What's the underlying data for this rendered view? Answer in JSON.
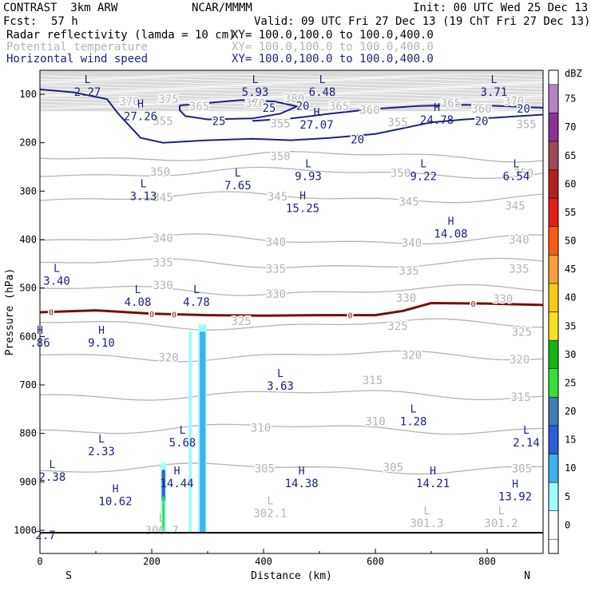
{
  "header": {
    "model": "CONTRAST  3km ARW",
    "center": "NCAR/MMMM",
    "init": "Init: 00 UTC Wed 25 Dec 13",
    "fcst_label": "Fcst:",
    "fcst_value": "57 h",
    "valid": "Valid: 09 UTC Fri 27 Dec 13 (19 ChT Fri 27 Dec 13)"
  },
  "fields": [
    {
      "name": "Radar reflectivity (lamda = 10 cm)",
      "xy": "XY= 100.0,100.0 to 100.0,400.0",
      "color": "#000000"
    },
    {
      "name": "Potential temperature",
      "xy": "XY= 100.0,100.0 to 100.0,400.0",
      "color": "#b4b4b4"
    },
    {
      "name": "Horizontal wind speed",
      "xy": "XY= 100.0,100.0 to 100.0,400.0",
      "color": "#1a237e"
    }
  ],
  "colors": {
    "theta": "#b4b4b4",
    "wind": "#1a237e",
    "zero_line": "#7a0d0d"
  },
  "chart_data": {
    "type": "cross-section",
    "xlabel": "Distance (km)",
    "ylabel": "Pressure (hPa)",
    "xlim": [
      0,
      900
    ],
    "ylim": [
      1010,
      60
    ],
    "x_ticks": [
      0,
      200,
      400,
      600,
      800
    ],
    "y_ticks": [
      100,
      200,
      300,
      400,
      500,
      600,
      700,
      800,
      900,
      1000
    ],
    "x_ends": [
      "S",
      "N"
    ],
    "colorbar": {
      "label": "dBZ",
      "levels": [
        "0",
        "5",
        "10",
        "15",
        "20",
        "25",
        "30",
        "35",
        "40",
        "45",
        "50",
        "55",
        "60",
        "65",
        "70",
        "75"
      ],
      "colors": [
        "#ffffff",
        "#9ffcfc",
        "#3fb0f0",
        "#2d5ed8",
        "#3f7fb8",
        "#37e037",
        "#14b414",
        "#fae020",
        "#fac818",
        "#fa9e3a",
        "#fa5a14",
        "#e61e14",
        "#b41e1e",
        "#9e4a5a",
        "#8c3296",
        "#b482c8"
      ]
    },
    "theta_labels": [
      {
        "value": "375",
        "x": 230,
        "p": 110
      },
      {
        "value": "370",
        "x": 160,
        "p": 115
      },
      {
        "value": "365",
        "x": 285,
        "p": 125
      },
      {
        "value": "370",
        "x": 385,
        "p": 118
      },
      {
        "value": "380",
        "x": 455,
        "p": 108
      },
      {
        "value": "365",
        "x": 535,
        "p": 125
      },
      {
        "value": "365",
        "x": 735,
        "p": 118
      },
      {
        "value": "370",
        "x": 848,
        "p": 114
      },
      {
        "value": "360",
        "x": 790,
        "p": 130
      },
      {
        "value": "355",
        "x": 220,
        "p": 155
      },
      {
        "value": "355",
        "x": 430,
        "p": 160
      },
      {
        "value": "355",
        "x": 640,
        "p": 158
      },
      {
        "value": "360",
        "x": 590,
        "p": 132
      },
      {
        "value": "355",
        "x": 870,
        "p": 162
      },
      {
        "value": "350",
        "x": 430,
        "p": 228
      },
      {
        "value": "350",
        "x": 215,
        "p": 260
      },
      {
        "value": "350",
        "x": 645,
        "p": 262
      },
      {
        "value": "350",
        "x": 865,
        "p": 262
      },
      {
        "value": "345",
        "x": 220,
        "p": 313
      },
      {
        "value": "345",
        "x": 425,
        "p": 311
      },
      {
        "value": "345",
        "x": 660,
        "p": 322
      },
      {
        "value": "345",
        "x": 850,
        "p": 330
      },
      {
        "value": "340",
        "x": 220,
        "p": 397
      },
      {
        "value": "340",
        "x": 422,
        "p": 405
      },
      {
        "value": "340",
        "x": 665,
        "p": 407
      },
      {
        "value": "340",
        "x": 857,
        "p": 400
      },
      {
        "value": "335",
        "x": 220,
        "p": 447
      },
      {
        "value": "335",
        "x": 422,
        "p": 460
      },
      {
        "value": "335",
        "x": 660,
        "p": 464
      },
      {
        "value": "335",
        "x": 857,
        "p": 460
      },
      {
        "value": "330",
        "x": 220,
        "p": 494
      },
      {
        "value": "330",
        "x": 422,
        "p": 512
      },
      {
        "value": "330",
        "x": 655,
        "p": 520
      },
      {
        "value": "330",
        "x": 828,
        "p": 522
      },
      {
        "value": "325",
        "x": 360,
        "p": 568
      },
      {
        "value": "325",
        "x": 640,
        "p": 578
      },
      {
        "value": "325",
        "x": 862,
        "p": 590
      },
      {
        "value": "320",
        "x": 230,
        "p": 643
      },
      {
        "value": "320",
        "x": 665,
        "p": 638
      },
      {
        "value": "320",
        "x": 858,
        "p": 647
      },
      {
        "value": "315",
        "x": 595,
        "p": 690
      },
      {
        "value": "315",
        "x": 860,
        "p": 725
      },
      {
        "value": "310",
        "x": 395,
        "p": 788
      },
      {
        "value": "310",
        "x": 600,
        "p": 775
      },
      {
        "value": "305",
        "x": 402,
        "p": 872
      },
      {
        "value": "305",
        "x": 632,
        "p": 870
      },
      {
        "value": "305",
        "x": 862,
        "p": 872
      }
    ],
    "wind_labels": [
      {
        "value": "25",
        "x": 410,
        "p": 128
      },
      {
        "value": "20",
        "x": 470,
        "p": 124
      },
      {
        "value": "25",
        "x": 320,
        "p": 155
      },
      {
        "value": "20",
        "x": 568,
        "p": 193
      },
      {
        "value": "20",
        "x": 790,
        "p": 155
      },
      {
        "value": "20",
        "x": 865,
        "p": 130
      }
    ],
    "extrema": [
      {
        "kind": "L",
        "value": "2.27",
        "x": 85,
        "p": 90
      },
      {
        "kind": "L",
        "value": "5.93",
        "x": 385,
        "p": 90
      },
      {
        "kind": "L",
        "value": "6.48",
        "x": 505,
        "p": 90
      },
      {
        "kind": "L",
        "value": "3.71",
        "x": 812,
        "p": 90
      },
      {
        "kind": "H",
        "value": "27.26",
        "x": 180,
        "p": 140
      },
      {
        "kind": "H",
        "value": "27.07",
        "x": 495,
        "p": 158
      },
      {
        "kind": "H",
        "value": "24.78",
        "x": 710,
        "p": 148
      },
      {
        "kind": "L",
        "value": "9.93",
        "x": 480,
        "p": 264
      },
      {
        "kind": "L",
        "value": "9.22",
        "x": 686,
        "p": 264
      },
      {
        "kind": "L",
        "value": "6.54",
        "x": 852,
        "p": 264
      },
      {
        "kind": "L",
        "value": "7.65",
        "x": 354,
        "p": 283
      },
      {
        "kind": "L",
        "value": "3.13",
        "x": 185,
        "p": 305
      },
      {
        "kind": "H",
        "value": "15.25",
        "x": 470,
        "p": 330
      },
      {
        "kind": "H",
        "value": "14.08",
        "x": 735,
        "p": 383
      },
      {
        "kind": "L",
        "value": "3.40",
        "x": 30,
        "p": 480
      },
      {
        "kind": "L",
        "value": "4.08",
        "x": 175,
        "p": 524
      },
      {
        "kind": "L",
        "value": "4.78",
        "x": 280,
        "p": 524
      },
      {
        "kind": "H",
        "value": "9.10",
        "x": 110,
        "p": 608
      },
      {
        "kind": "H",
        "value": ".86",
        "x": 0,
        "p": 608
      },
      {
        "kind": "L",
        "value": "3.63",
        "x": 430,
        "p": 697
      },
      {
        "kind": "L",
        "value": "1.28",
        "x": 668,
        "p": 770
      },
      {
        "kind": "L",
        "value": "5.68",
        "x": 255,
        "p": 814
      },
      {
        "kind": "L",
        "value": "2.14",
        "x": 870,
        "p": 814
      },
      {
        "kind": "L",
        "value": "2.33",
        "x": 110,
        "p": 832
      },
      {
        "kind": "L",
        "value": "2.38",
        "x": 22,
        "p": 885
      },
      {
        "kind": "H",
        "value": "14.44",
        "x": 245,
        "p": 898
      },
      {
        "kind": "H",
        "value": "14.38",
        "x": 468,
        "p": 898
      },
      {
        "kind": "H",
        "value": "14.21",
        "x": 703,
        "p": 898
      },
      {
        "kind": "H",
        "value": "13.92",
        "x": 850,
        "p": 925
      },
      {
        "kind": "H",
        "value": "10.62",
        "x": 135,
        "p": 935
      },
      {
        "kind": "L",
        "value": "302.1",
        "x": 412,
        "p": 960
      },
      {
        "kind": "L",
        "value": "301.3",
        "x": 692,
        "p": 980
      },
      {
        "kind": "L",
        "value": "301.2",
        "x": 825,
        "p": 980
      },
      {
        "kind": "L",
        "value": "300.7",
        "x": 218,
        "p": 995
      },
      {
        "kind": "",
        "value": "2.7",
        "x": 10,
        "p": 1005
      }
    ],
    "zero_contour": {
      "label": "0",
      "points": [
        [
          0,
          550
        ],
        [
          100,
          546
        ],
        [
          200,
          553
        ],
        [
          300,
          556
        ],
        [
          400,
          557
        ],
        [
          500,
          556
        ],
        [
          600,
          556
        ],
        [
          650,
          547
        ],
        [
          700,
          531
        ],
        [
          800,
          532
        ],
        [
          900,
          535
        ]
      ],
      "label_x": [
        20,
        200,
        240,
        555,
        775
      ]
    },
    "wind_contour_20": [
      [
        0,
        90
      ],
      [
        60,
        96
      ],
      [
        120,
        110
      ],
      [
        140,
        140
      ],
      [
        160,
        165
      ],
      [
        180,
        190
      ],
      [
        220,
        200
      ],
      [
        300,
        195
      ],
      [
        380,
        192
      ],
      [
        450,
        195
      ],
      [
        520,
        190
      ],
      [
        600,
        182
      ],
      [
        650,
        170
      ],
      [
        700,
        158
      ],
      [
        760,
        152
      ],
      [
        820,
        148
      ],
      [
        900,
        142
      ]
    ],
    "wind_contour_25": [
      [
        250,
        123
      ],
      [
        300,
        118
      ],
      [
        360,
        112
      ],
      [
        420,
        115
      ],
      [
        460,
        125
      ],
      [
        430,
        140
      ],
      [
        380,
        150
      ],
      [
        300,
        152
      ],
      [
        260,
        145
      ],
      [
        250,
        133
      ],
      [
        250,
        123
      ]
    ],
    "wind_contour_20b": [
      [
        380,
        155
      ],
      [
        450,
        150
      ],
      [
        520,
        140
      ],
      [
        600,
        130
      ],
      [
        680,
        124
      ],
      [
        760,
        122
      ],
      [
        840,
        125
      ],
      [
        900,
        128
      ]
    ],
    "reflectivity": [
      {
        "x0": 216,
        "x1": 226,
        "p_top": 860,
        "p_bot": 1005,
        "level": 1
      },
      {
        "x0": 218,
        "x1": 224,
        "p_top": 875,
        "p_bot": 940,
        "level": 3
      },
      {
        "x0": 219,
        "x1": 223,
        "p_top": 930,
        "p_bot": 1000,
        "level": 5
      },
      {
        "x0": 266,
        "x1": 272,
        "p_top": 590,
        "p_bot": 1005,
        "level": 1
      },
      {
        "x0": 283,
        "x1": 298,
        "p_top": 575,
        "p_bot": 1005,
        "level": 1
      },
      {
        "x0": 286,
        "x1": 296,
        "p_top": 590,
        "p_bot": 1005,
        "level": 2
      }
    ]
  }
}
